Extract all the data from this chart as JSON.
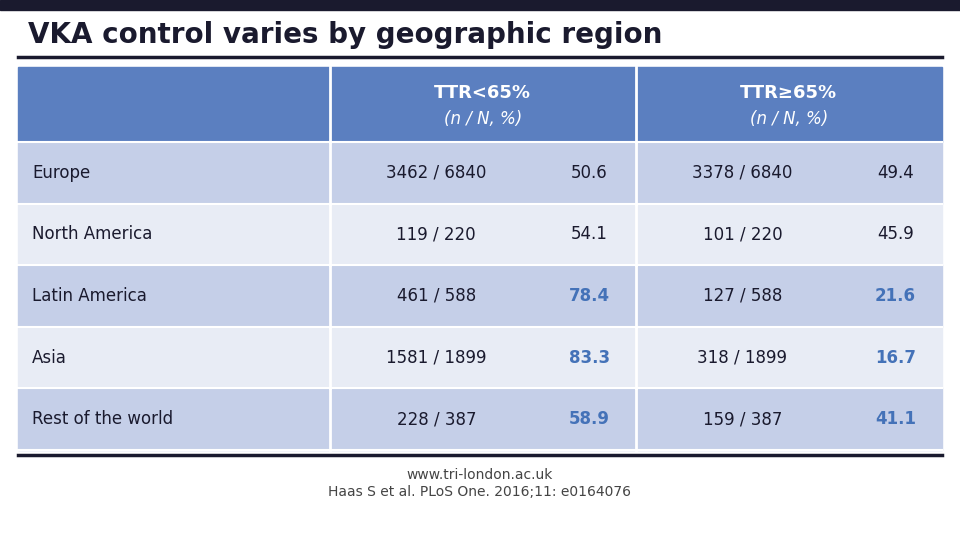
{
  "title": "VKA control varies by geographic region",
  "title_fontsize": 20,
  "background_color": "#ffffff",
  "top_bar_color": "#1a1a2e",
  "header_bg_color": "#5b7fc0",
  "row_bg_dark": "#c5cfe8",
  "row_bg_light": "#e8ecf5",
  "header_text_color": "#ffffff",
  "row_text_color": "#1a1a2e",
  "highlight_color": "#4472b8",
  "col_headers_line1": [
    "TTR<65%",
    "TTR≥65%"
  ],
  "col_headers_line2": [
    "(n / N, %)",
    "(n / N, %)"
  ],
  "row_labels": [
    "Europe",
    "North America",
    "Latin America",
    "Asia",
    "Rest of the world"
  ],
  "col1_fraction": [
    "3462 / 6840",
    "119 / 220",
    "461 / 588",
    "1581 / 1899",
    "228 / 387"
  ],
  "col1_pct": [
    "50.6",
    "54.1",
    "78.4",
    "83.3",
    "58.9"
  ],
  "col2_fraction": [
    "3378 / 6840",
    "101 / 220",
    "127 / 588",
    "318 / 1899",
    "159 / 387"
  ],
  "col2_pct": [
    "49.4",
    "45.9",
    "21.6",
    "16.7",
    "41.1"
  ],
  "col1_pct_highlight": [
    false,
    false,
    true,
    true,
    true
  ],
  "col2_pct_highlight": [
    false,
    false,
    true,
    true,
    true
  ],
  "footer_text1": "www.tri-london.ac.uk",
  "footer_text2": "Haas S et al. PLoS One. 2016;11: e0164076"
}
